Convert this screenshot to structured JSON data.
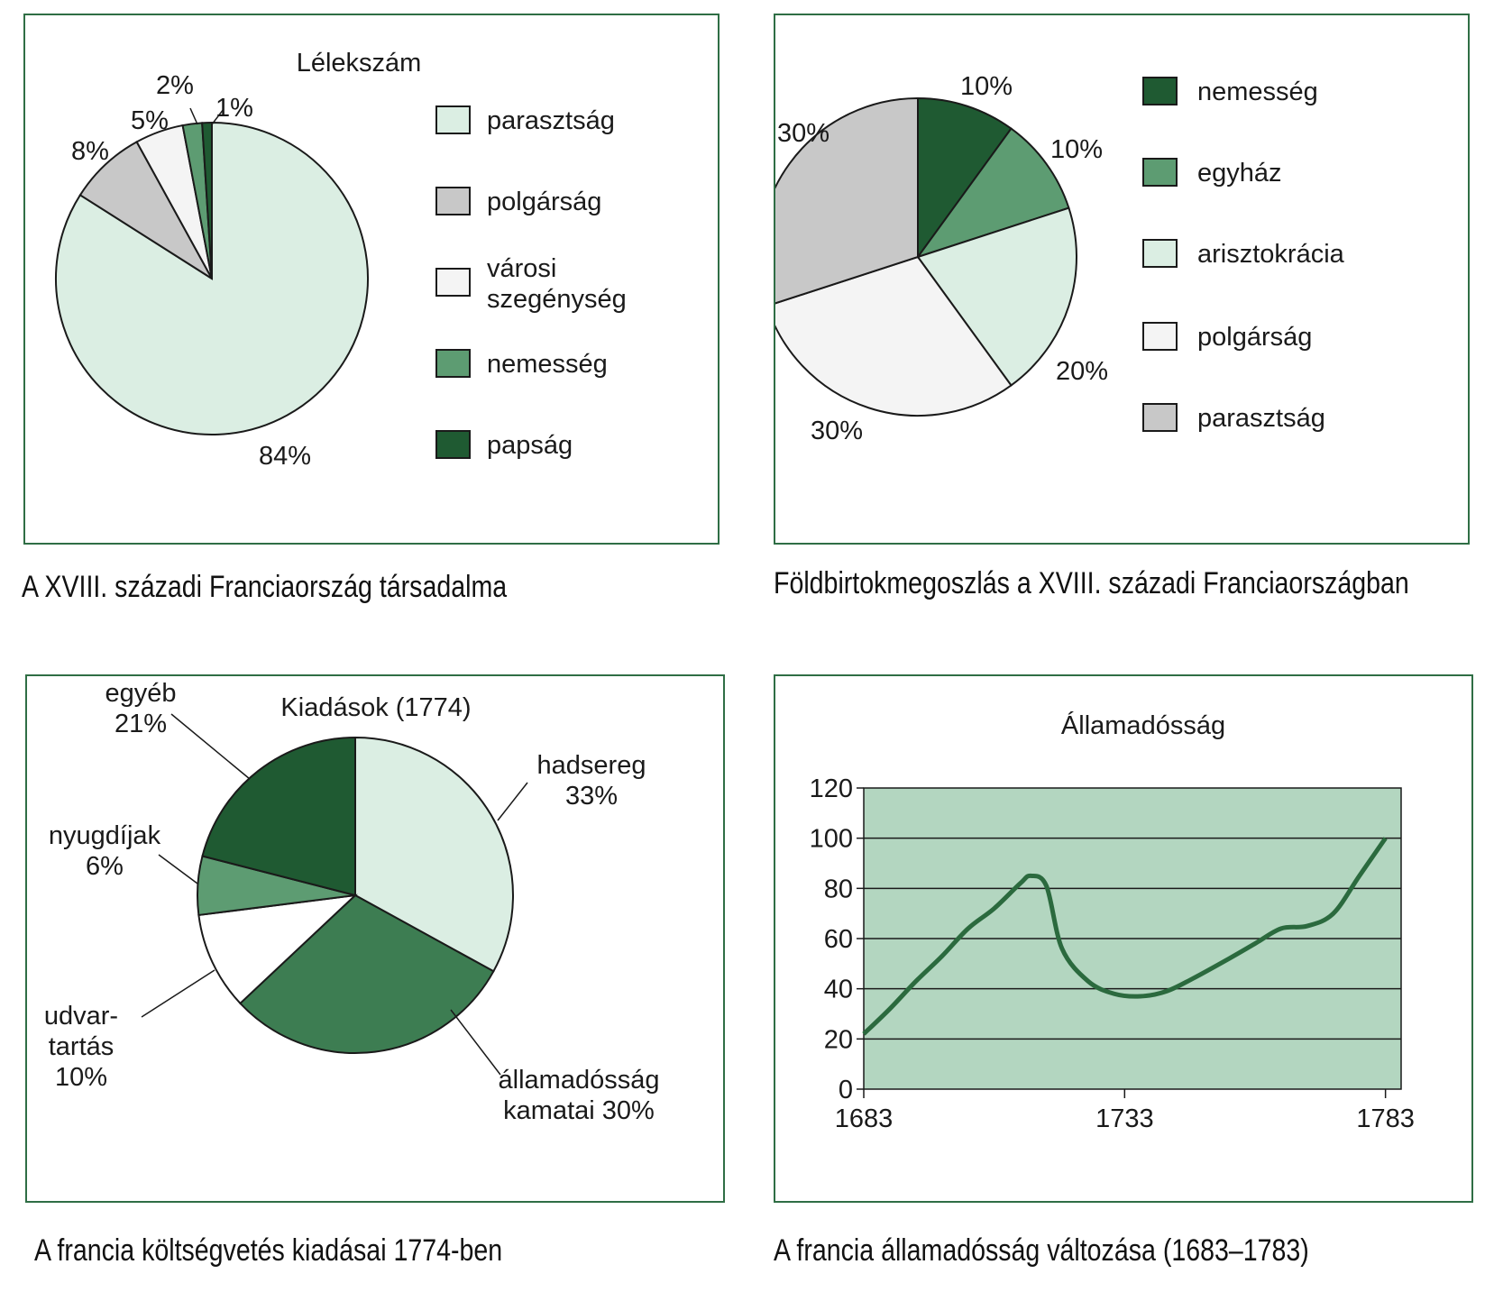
{
  "colors": {
    "frame": "#2f6e45",
    "paraszt_light": "#dbeee3",
    "gray": "#c8c8c8",
    "white": "#f4f4f4",
    "mid_green": "#5d9c72",
    "dark_green": "#1f5a32",
    "line_bg": "#b3d6c0",
    "debt_line": "#2b6a3e"
  },
  "captions": {
    "society": "A XVIII. századi Franciaország társadalma",
    "land": "Földbirtokmegoszlás a XVIII. századi Franciaországban",
    "budget": "A francia költségvetés kiadásai 1774-ben",
    "debt": "A francia államadósság változása (1683–1783)"
  },
  "chart_data": [
    {
      "type": "pie",
      "title": "Lélekszám",
      "slices": [
        {
          "name": "parasztság",
          "value": 84,
          "label": "84%",
          "color": "#dbeee3"
        },
        {
          "name": "polgárság",
          "value": 8,
          "label": "8%",
          "color": "#c8c8c8"
        },
        {
          "name": "városi szegénység",
          "value": 5,
          "label": "5%",
          "color": "#f4f4f4"
        },
        {
          "name": "nemesség",
          "value": 2,
          "label": "2%",
          "color": "#5d9c72"
        },
        {
          "name": "papság",
          "value": 1,
          "label": "1%",
          "color": "#1f5a32"
        }
      ],
      "legend": [
        {
          "lines": [
            "parasztság"
          ],
          "color": "#dbeee3"
        },
        {
          "lines": [
            "polgárság"
          ],
          "color": "#c8c8c8"
        },
        {
          "lines": [
            "városi",
            "szegénység"
          ],
          "color": "#f4f4f4"
        },
        {
          "lines": [
            "nemesség"
          ],
          "color": "#5d9c72"
        },
        {
          "lines": [
            "papság"
          ],
          "color": "#1f5a32"
        }
      ],
      "legend_position": "right"
    },
    {
      "type": "pie",
      "title": "",
      "slices": [
        {
          "name": "nemesség",
          "value": 10,
          "label": "10%",
          "color": "#1f5a32"
        },
        {
          "name": "egyház",
          "value": 10,
          "label": "10%",
          "color": "#5d9c72"
        },
        {
          "name": "arisztokrácia",
          "value": 20,
          "label": "20%",
          "color": "#dbeee3"
        },
        {
          "name": "polgárság",
          "value": 30,
          "label": "30%",
          "color": "#f4f4f4"
        },
        {
          "name": "parasztság",
          "value": 30,
          "label": "30%",
          "color": "#c8c8c8"
        }
      ],
      "legend": [
        {
          "lines": [
            "nemesség"
          ],
          "color": "#1f5a32"
        },
        {
          "lines": [
            "egyház"
          ],
          "color": "#5d9c72"
        },
        {
          "lines": [
            "arisztokrácia"
          ],
          "color": "#dbeee3"
        },
        {
          "lines": [
            "polgárság"
          ],
          "color": "#f4f4f4"
        },
        {
          "lines": [
            "parasztság"
          ],
          "color": "#c8c8c8"
        }
      ],
      "legend_position": "right"
    },
    {
      "type": "pie",
      "title": "Kiadások (1774)",
      "slices": [
        {
          "name": "hadsereg",
          "value": 33,
          "lines": [
            "hadsereg",
            "33%"
          ],
          "color": "#dbeee3"
        },
        {
          "name": "államadósság kamatai",
          "value": 30,
          "lines": [
            "államadósság",
            "kamatai 30%"
          ],
          "color": "#3d7d52"
        },
        {
          "name": "udvartartás",
          "value": 10,
          "lines": [
            "udvar-",
            "tartás",
            "10%"
          ],
          "color": "#ffffff"
        },
        {
          "name": "nyugdíjak",
          "value": 6,
          "lines": [
            "nyugdíjak",
            "6%"
          ],
          "color": "#5d9c72"
        },
        {
          "name": "egyéb",
          "value": 21,
          "lines": [
            "egyéb",
            "21%"
          ],
          "color": "#1f5a32"
        }
      ],
      "legend_position": "none"
    },
    {
      "type": "line",
      "title": "Államadósság",
      "x": [
        1683,
        1688,
        1693,
        1698,
        1703,
        1708,
        1713,
        1715,
        1718,
        1721,
        1726,
        1731,
        1736,
        1741,
        1746,
        1753,
        1758,
        1763,
        1768,
        1773,
        1778,
        1783
      ],
      "y": [
        22,
        32,
        43,
        53,
        64,
        72,
        82,
        85,
        81,
        56,
        43,
        38,
        37,
        39,
        44,
        52,
        58,
        64,
        65,
        70,
        85,
        100
      ],
      "xticks": [
        "1683",
        "1733",
        "1783"
      ],
      "xtick_values": [
        1683,
        1733,
        1783
      ],
      "yticks": [
        "0",
        "20",
        "40",
        "60",
        "80",
        "100",
        "120"
      ],
      "ylim": [
        0,
        120
      ],
      "xlim": [
        1683,
        1786
      ],
      "grid": true
    }
  ]
}
